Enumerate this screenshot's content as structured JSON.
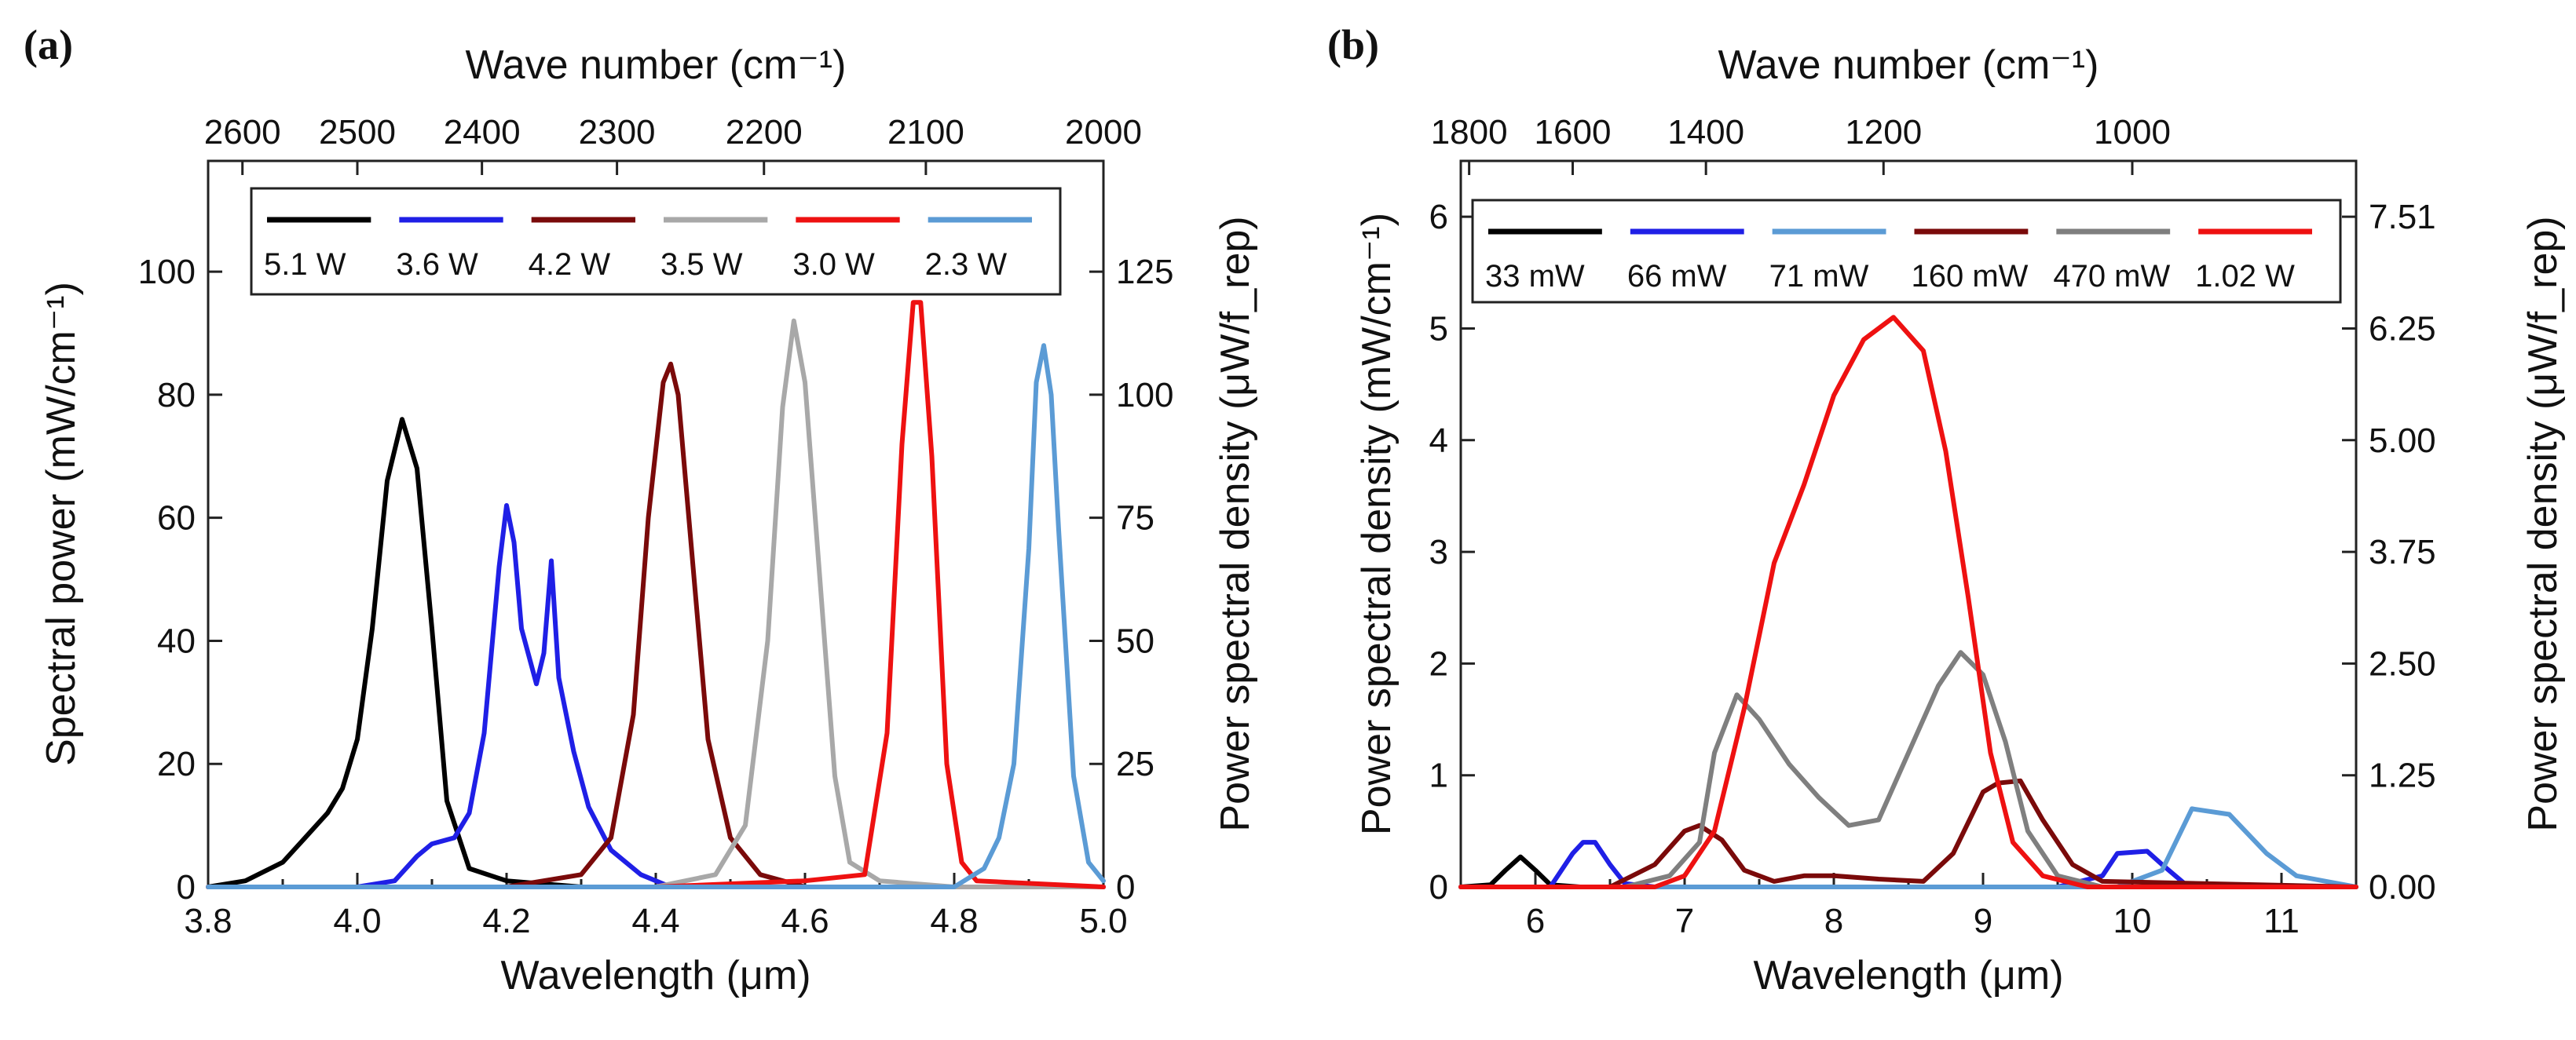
{
  "chart_data": [
    {
      "type": "line",
      "panel_label": "(a)",
      "xlabel": "Wavelength (μm)",
      "x_top_label": "Wave number (cm⁻¹)",
      "ylabel": "Spectral power (mW/cm⁻¹)",
      "y_right_label": "Power spectral density (μW/f_rep)",
      "xlim": [
        3.8,
        5.0
      ],
      "ylim": [
        0,
        118
      ],
      "x_ticks": [
        3.8,
        4.0,
        4.2,
        4.4,
        4.6,
        4.8,
        5.0
      ],
      "x_tick_labels": [
        "3.8",
        "4.0",
        "4.2",
        "4.4",
        "4.6",
        "4.8",
        "5.0"
      ],
      "y_ticks": [
        0,
        20,
        40,
        60,
        80,
        100
      ],
      "y_tick_labels": [
        "0",
        "20",
        "40",
        "60",
        "80",
        "100"
      ],
      "y_right_ticks": [
        0,
        20,
        40,
        60,
        80,
        100
      ],
      "y_right_tick_labels": [
        "0",
        "25",
        "50",
        "75",
        "100",
        "125"
      ],
      "top_ticks": [
        3.846,
        4.0,
        4.167,
        4.348,
        4.545,
        4.762,
        5.0
      ],
      "top_tick_labels": [
        "2600",
        "2500",
        "2400",
        "2300",
        "2200",
        "2100",
        "2000"
      ],
      "legend_position": "top",
      "series": [
        {
          "name": "5.1 W",
          "color": "#000000",
          "x": [
            3.8,
            3.85,
            3.9,
            3.93,
            3.96,
            3.98,
            4.0,
            4.02,
            4.04,
            4.06,
            4.08,
            4.1,
            4.12,
            4.15,
            4.2,
            4.3,
            4.5,
            5.0
          ],
          "y": [
            0,
            1,
            4,
            8,
            12,
            16,
            24,
            42,
            66,
            76,
            68,
            42,
            14,
            3,
            1,
            0,
            0,
            0
          ]
        },
        {
          "name": "3.6 W",
          "color": "#1f1fe6",
          "x": [
            3.8,
            4.0,
            4.05,
            4.08,
            4.1,
            4.13,
            4.15,
            4.17,
            4.19,
            4.2,
            4.21,
            4.22,
            4.24,
            4.25,
            4.26,
            4.27,
            4.29,
            4.31,
            4.34,
            4.38,
            4.42,
            4.5,
            5.0
          ],
          "y": [
            0,
            0,
            1,
            5,
            7,
            8,
            12,
            25,
            52,
            62,
            56,
            42,
            33,
            38,
            53,
            34,
            22,
            13,
            6,
            2,
            0,
            0,
            0
          ]
        },
        {
          "name": "4.2 W",
          "color": "#7a0a0a",
          "x": [
            3.8,
            4.2,
            4.3,
            4.34,
            4.37,
            4.39,
            4.41,
            4.42,
            4.43,
            4.45,
            4.47,
            4.5,
            4.54,
            4.6,
            5.0
          ],
          "y": [
            0,
            0,
            2,
            8,
            28,
            60,
            82,
            85,
            80,
            52,
            24,
            8,
            2,
            0,
            0
          ]
        },
        {
          "name": "3.5 W",
          "color": "#a8a8a8",
          "x": [
            3.8,
            4.4,
            4.48,
            4.52,
            4.55,
            4.57,
            4.585,
            4.6,
            4.62,
            4.64,
            4.66,
            4.7,
            4.8,
            5.0
          ],
          "y": [
            0,
            0,
            2,
            10,
            40,
            78,
            92,
            82,
            50,
            18,
            4,
            1,
            0,
            0
          ]
        },
        {
          "name": "3.0 W",
          "color": "#ee1111",
          "x": [
            3.8,
            4.4,
            4.6,
            4.68,
            4.71,
            4.73,
            4.745,
            4.755,
            4.77,
            4.79,
            4.81,
            4.83,
            5.0
          ],
          "y": [
            0,
            0,
            1,
            2,
            25,
            72,
            95,
            95,
            70,
            20,
            4,
            1,
            0
          ]
        },
        {
          "name": "2.3 W",
          "color": "#5b9bd5",
          "x": [
            3.8,
            4.6,
            4.8,
            4.84,
            4.86,
            4.88,
            4.9,
            4.91,
            4.92,
            4.93,
            4.94,
            4.96,
            4.98,
            5.0
          ],
          "y": [
            0,
            0,
            0,
            3,
            8,
            20,
            55,
            82,
            88,
            80,
            58,
            18,
            4,
            1
          ]
        }
      ]
    },
    {
      "type": "line",
      "panel_label": "(b)",
      "xlabel": "Wavelength (μm)",
      "x_top_label": "Wave number (cm⁻¹)",
      "ylabel": "Power spectral density (mW/cm⁻¹)",
      "y_right_label": "Power spectral density (μW/f_rep)",
      "xlim": [
        5.5,
        11.5
      ],
      "ylim": [
        0,
        6.5
      ],
      "x_ticks": [
        6,
        7,
        8,
        9,
        10,
        11
      ],
      "x_tick_labels": [
        "6",
        "7",
        "8",
        "9",
        "10",
        "11"
      ],
      "y_ticks": [
        0,
        1,
        2,
        3,
        4,
        5,
        6
      ],
      "y_tick_labels": [
        "0",
        "1",
        "2",
        "3",
        "4",
        "5",
        "6"
      ],
      "y_right_ticks": [
        0,
        1,
        2,
        3,
        4,
        5,
        6
      ],
      "y_right_tick_labels": [
        "0.00",
        "1.25",
        "2.50",
        "3.75",
        "5.00",
        "6.25",
        "7.51"
      ],
      "top_ticks": [
        5.556,
        6.25,
        7.143,
        8.333,
        10.0
      ],
      "top_tick_labels": [
        "1800",
        "1600",
        "1400",
        "1200",
        "1000"
      ],
      "legend_position": "top",
      "series": [
        {
          "name": "33 mW",
          "color": "#000000",
          "x": [
            5.5,
            5.7,
            5.8,
            5.9,
            6.0,
            6.1,
            6.3,
            11.5
          ],
          "y": [
            0,
            0.02,
            0.15,
            0.27,
            0.15,
            0.02,
            0,
            0
          ]
        },
        {
          "name": "66 mW",
          "color": "#1f1fe6",
          "x": [
            5.5,
            6.1,
            6.25,
            6.32,
            6.4,
            6.5,
            6.6,
            6.8,
            9.5,
            9.8,
            9.9,
            10.1,
            10.2,
            10.35,
            10.5,
            11.5
          ],
          "y": [
            0,
            0,
            0.3,
            0.4,
            0.4,
            0.2,
            0.03,
            0,
            0,
            0.1,
            0.3,
            0.32,
            0.2,
            0.03,
            0,
            0
          ]
        },
        {
          "name": "71 mW",
          "color": "#5b9bd5",
          "x": [
            5.5,
            9.9,
            10.2,
            10.4,
            10.65,
            10.9,
            11.1,
            11.3,
            11.5
          ],
          "y": [
            0,
            0,
            0.15,
            0.7,
            0.65,
            0.3,
            0.1,
            0.05,
            0
          ]
        },
        {
          "name": "160 mW",
          "color": "#7a0a0a",
          "x": [
            5.5,
            6.5,
            6.8,
            7.0,
            7.1,
            7.25,
            7.4,
            7.6,
            7.8,
            8.0,
            8.3,
            8.6,
            8.8,
            9.0,
            9.1,
            9.25,
            9.4,
            9.6,
            9.8,
            11.5
          ],
          "y": [
            0,
            0,
            0.2,
            0.5,
            0.55,
            0.42,
            0.15,
            0.05,
            0.1,
            0.1,
            0.07,
            0.05,
            0.3,
            0.85,
            0.93,
            0.95,
            0.6,
            0.2,
            0.05,
            0
          ]
        },
        {
          "name": "470 mW",
          "color": "#7f7f7f",
          "x": [
            5.5,
            6.6,
            6.9,
            7.1,
            7.2,
            7.35,
            7.5,
            7.7,
            7.9,
            8.1,
            8.3,
            8.5,
            8.7,
            8.85,
            9.0,
            9.15,
            9.3,
            9.5,
            9.8,
            11.5
          ],
          "y": [
            0,
            0,
            0.1,
            0.4,
            1.2,
            1.72,
            1.5,
            1.1,
            0.8,
            0.55,
            0.6,
            1.2,
            1.8,
            2.1,
            1.9,
            1.3,
            0.5,
            0.1,
            0,
            0
          ]
        },
        {
          "name": "1.02 W",
          "color": "#ee1111",
          "x": [
            5.5,
            6.8,
            7.0,
            7.2,
            7.4,
            7.6,
            7.8,
            8.0,
            8.2,
            8.4,
            8.6,
            8.75,
            8.9,
            9.05,
            9.2,
            9.4,
            9.7,
            11.5
          ],
          "y": [
            0,
            0,
            0.1,
            0.5,
            1.6,
            2.9,
            3.6,
            4.4,
            4.9,
            5.1,
            4.8,
            3.9,
            2.6,
            1.2,
            0.4,
            0.1,
            0,
            0
          ]
        }
      ]
    }
  ]
}
